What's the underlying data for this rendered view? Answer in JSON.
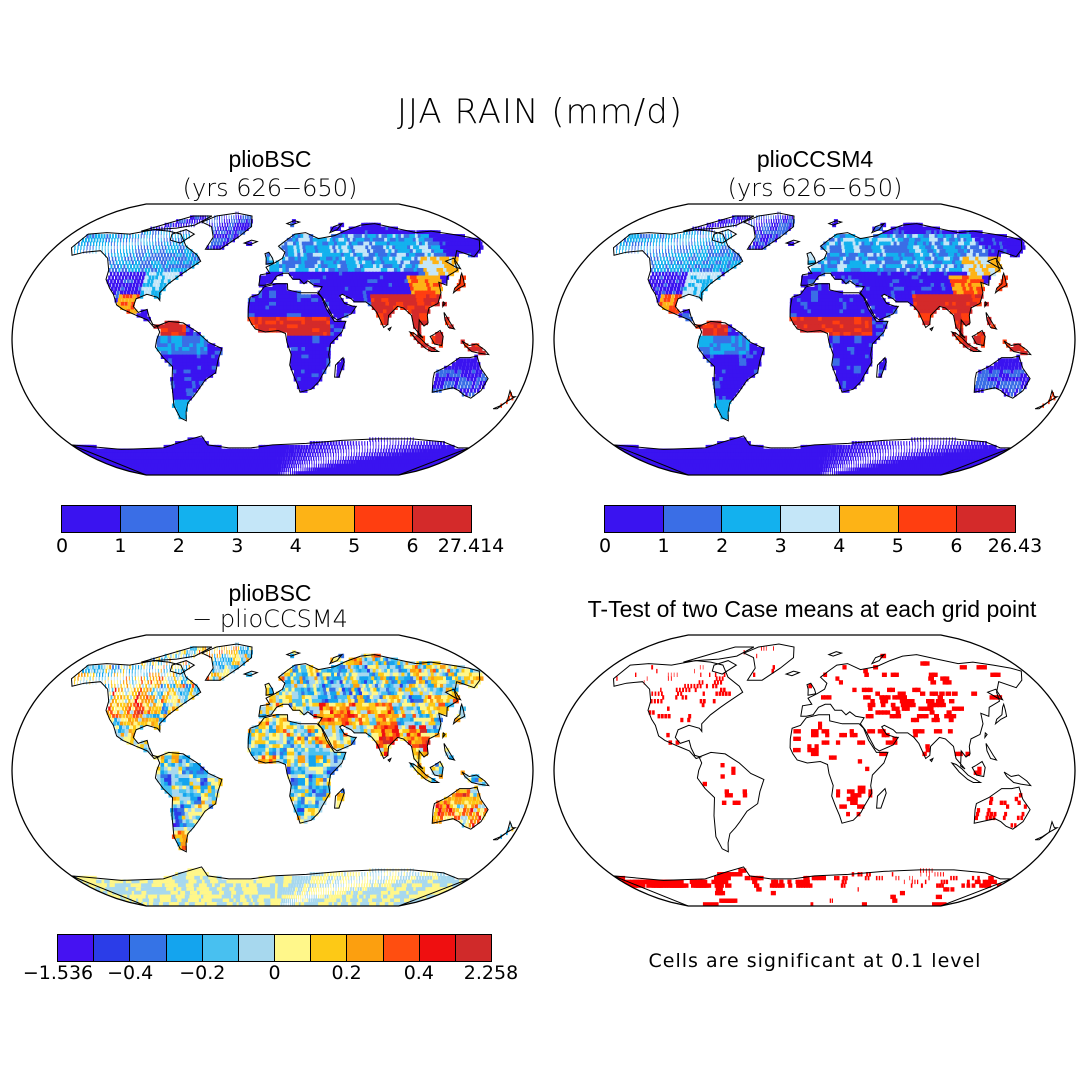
{
  "title": "JJA RAIN (mm/d)",
  "panels": [
    {
      "title": "plioBSC",
      "subtitle": "(yrs 626−650)"
    },
    {
      "title": "plioCCSM4",
      "subtitle": "(yrs 626−650)"
    },
    {
      "title": "plioBSC",
      "subtitle": "− plioCCSM4"
    },
    {
      "title": "T-Test of two Case means at each grid point",
      "subtitle": ""
    }
  ],
  "colorbars": [
    {
      "colors": [
        "#3a13f0",
        "#3a6ee6",
        "#13b1ee",
        "#c4e6f8",
        "#fdb316",
        "#ff3e10",
        "#d42a2a"
      ],
      "labels": [
        "0",
        "1",
        "2",
        "3",
        "4",
        "5",
        "6",
        "27.414"
      ]
    },
    {
      "colors": [
        "#3a13f0",
        "#3a6ee6",
        "#13b1ee",
        "#c4e6f8",
        "#fdb316",
        "#ff3e10",
        "#d42a2a"
      ],
      "labels": [
        "0",
        "1",
        "2",
        "3",
        "4",
        "5",
        "6",
        "26.43"
      ]
    },
    {
      "colors": [
        "#4512f2",
        "#2b3de8",
        "#3573e6",
        "#14a4ee",
        "#48c0f0",
        "#a7d8ee",
        "#fff78a",
        "#fdc916",
        "#fc9f0f",
        "#ff4e10",
        "#ef0f10",
        "#d02a2a"
      ],
      "labels": [
        "−1.536",
        "−0.4",
        "−0.2",
        "0",
        "0.2",
        "0.4",
        "2.258"
      ]
    }
  ],
  "note": "Cells are significant at 0.1 level",
  "colors": {
    "background": "#ffffff",
    "ttest": "#ff0000"
  }
}
